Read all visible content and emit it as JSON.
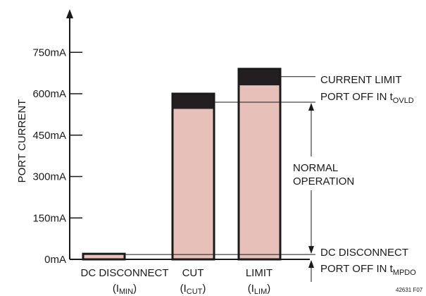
{
  "chart_data": {
    "type": "bar",
    "ylabel": "PORT CURRENT",
    "yticks": [
      "0mA",
      "150mA",
      "300mA",
      "450mA",
      "600mA",
      "750mA"
    ],
    "ylim": [
      0,
      900
    ],
    "unit": "mA",
    "categories": [
      {
        "label": "DC DISCONNECT",
        "sub_main": "(I",
        "sub_script": "MIN",
        "sub_close": ")"
      },
      {
        "label": "CUT",
        "sub_main": "(I",
        "sub_script": "CUT",
        "sub_close": ")"
      },
      {
        "label": "LIMIT",
        "sub_main": "(I",
        "sub_script": "LIM",
        "sub_close": ")"
      }
    ],
    "bars": [
      {
        "name": "DC DISCONNECT",
        "pink_top": 20,
        "dark_top": 20
      },
      {
        "name": "CUT",
        "pink_top": 545,
        "dark_top": 600
      },
      {
        "name": "LIMIT",
        "pink_top": 630,
        "dark_top": 690
      }
    ],
    "colors": {
      "bar_fill": "#e8c0ba",
      "band": "#231f20",
      "line": "#1a1a1a"
    },
    "annotations": {
      "current_limit": "CURRENT LIMIT",
      "port_off_ovld_main": "PORT OFF IN t",
      "port_off_ovld_sub": "OVLD",
      "normal_line1": "NORMAL",
      "normal_line2": "OPERATION",
      "dc_disconnect": "DC DISCONNECT",
      "port_off_mpdo_main": "PORT OFF IN t",
      "port_off_mpdo_sub": "MPDO"
    },
    "figure_id": "42631 F07"
  }
}
